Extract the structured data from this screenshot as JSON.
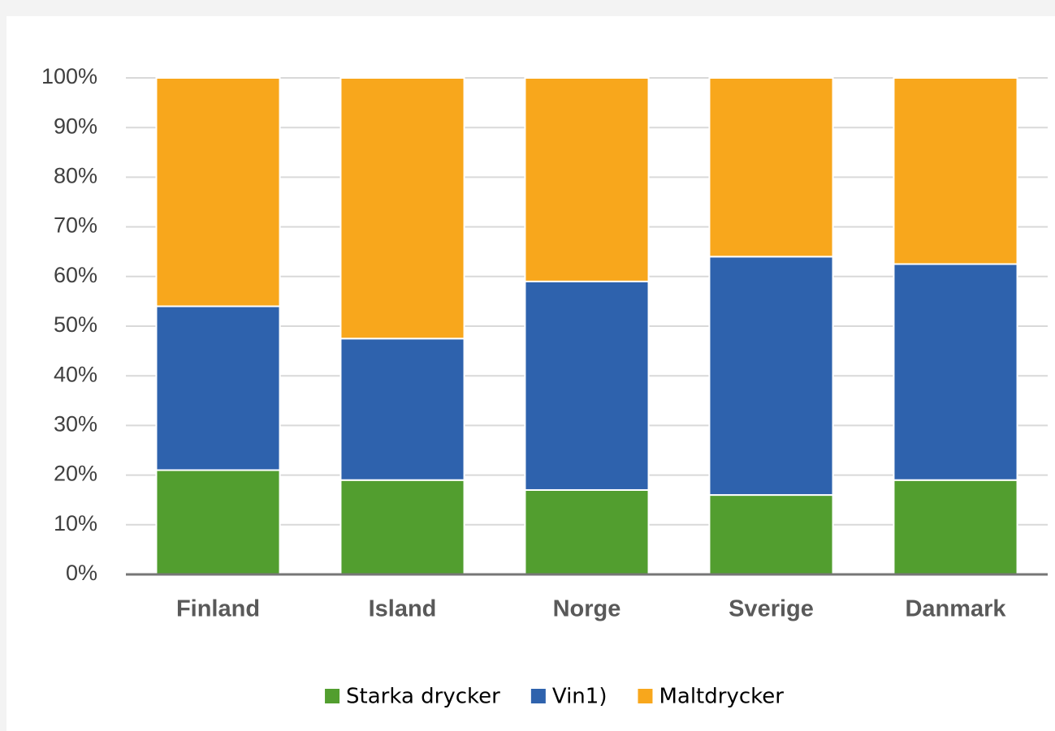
{
  "chart_data": {
    "type": "stacked_bar",
    "categories": [
      "Finland",
      "Island",
      "Norge",
      "Sverige",
      "Danmark"
    ],
    "series": [
      {
        "name": "Starka drycker",
        "color": "#529e2f",
        "values": [
          21,
          19,
          17,
          16,
          19
        ]
      },
      {
        "name": "Vin1)",
        "color": "#2e62ad",
        "values": [
          33,
          28.5,
          42,
          48,
          43.5
        ]
      },
      {
        "name": "Maltdrycker",
        "color": "#f8a71c",
        "values": [
          46,
          52.5,
          41,
          36,
          37.5
        ]
      }
    ],
    "ylim": [
      0,
      100
    ],
    "yticks": [
      {
        "value": 0,
        "label": "0%"
      },
      {
        "value": 10,
        "label": "10%"
      },
      {
        "value": 20,
        "label": "20%"
      },
      {
        "value": 30,
        "label": "30%"
      },
      {
        "value": 40,
        "label": "40%"
      },
      {
        "value": 50,
        "label": "50%"
      },
      {
        "value": 60,
        "label": "60%"
      },
      {
        "value": 70,
        "label": "70%"
      },
      {
        "value": 80,
        "label": "80%"
      },
      {
        "value": 90,
        "label": "90%"
      },
      {
        "value": 100,
        "label": "100%"
      }
    ],
    "grid": true,
    "legend": "bottom"
  }
}
